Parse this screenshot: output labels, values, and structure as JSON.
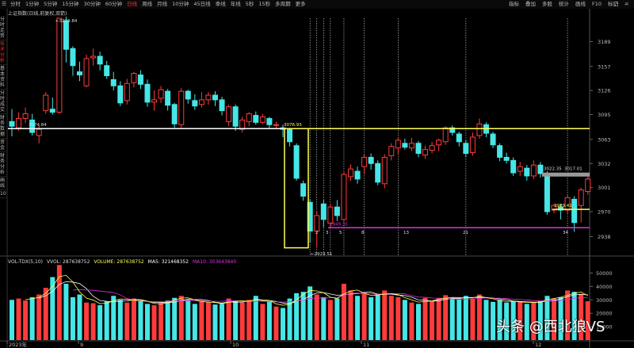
{
  "toolbar": {
    "home": "☰",
    "periods": [
      "分时",
      "1分钟",
      "5分钟",
      "15分钟",
      "30分钟",
      "60分钟",
      "日线",
      "周线",
      "月线",
      "10分钟",
      "45日线",
      "季线",
      "年线",
      "5秒",
      "15秒",
      "多周期",
      "更多"
    ],
    "active_period": "日线",
    "tools": [
      "指标",
      "叠加",
      "多股",
      "统计",
      "画线",
      "F10",
      "标记",
      "-"
    ],
    "window": [
      "□",
      "×"
    ]
  },
  "sidebar": {
    "items": [
      "分时走势",
      "技术分析",
      "基本资料",
      "分时成交",
      "财务数据",
      "资金",
      "财务分析",
      "画线",
      "10"
    ],
    "active": "技术分析"
  },
  "chart_title": "上证指数(日线,前复权,双箭)",
  "price_axis": {
    "ticks": [
      "3189",
      "3157",
      "3126",
      "3095",
      "3063",
      "3032",
      "3001",
      "2970",
      "2938"
    ],
    "min": 2918,
    "max": 3219
  },
  "volume_axis": {
    "ticks": [
      "50000",
      "40000",
      "30000",
      "20000",
      "10000"
    ],
    "max": 55000
  },
  "date_axis": [
    "2023年",
    "9",
    "10",
    "11",
    "12"
  ],
  "annotations": {
    "high_label": "3219.84",
    "left_line_label": "3074.84",
    "box_top_label": "3076.93",
    "low_label": "2923.51",
    "magenta_label": "2949.35",
    "gray_label": "3022.35",
    "gray_label2": "3017.01",
    "yellow_right_label": "2989.41",
    "counts": [
      "2",
      "3",
      "5",
      "8",
      "13",
      "21",
      "34"
    ]
  },
  "volume_legend": {
    "name": "VOL-TDX(5,10)",
    "vvol": "VVOL: 287638752",
    "volume": "VOLUME: 287638752",
    "ma5": "MA5: 321468352",
    "ma10": "MA10: 303643840"
  },
  "colors": {
    "up": "#ff3b3b",
    "down": "#45e6e6",
    "white": "#ffffff",
    "yellow": "#ffff55",
    "magenta": "#e030e0",
    "gray": "#9a9a9a"
  },
  "watermark": "头条 @西北狼VS",
  "chart_data": {
    "type": "candlestick",
    "series": [
      {
        "name": "OHLC",
        "values": [
          [
            3086,
            3080,
            3102,
            3067
          ],
          [
            3078,
            3090,
            3098,
            3074
          ],
          [
            3090,
            3096,
            3104,
            3084
          ],
          [
            3088,
            3072,
            3096,
            3068
          ],
          [
            3068,
            3076,
            3081,
            3058
          ],
          [
            3100,
            3120,
            3124,
            3096
          ],
          [
            3102,
            3098,
            3117,
            3095
          ],
          [
            3098,
            3219,
            3219,
            3096
          ],
          [
            3216,
            3179,
            3221,
            3162
          ],
          [
            3180,
            3158,
            3183,
            3145
          ],
          [
            3150,
            3146,
            3163,
            3138
          ],
          [
            3132,
            3167,
            3172,
            3130
          ],
          [
            3168,
            3170,
            3180,
            3158
          ],
          [
            3170,
            3160,
            3176,
            3152
          ],
          [
            3158,
            3145,
            3164,
            3141
          ],
          [
            3140,
            3132,
            3150,
            3126
          ],
          [
            3132,
            3110,
            3138,
            3106
          ],
          [
            3113,
            3135,
            3141,
            3108
          ],
          [
            3136,
            3148,
            3150,
            3130
          ],
          [
            3146,
            3134,
            3152,
            3128
          ],
          [
            3134,
            3111,
            3140,
            3105
          ],
          [
            3111,
            3114,
            3126,
            3100
          ],
          [
            3116,
            3127,
            3132,
            3110
          ],
          [
            3125,
            3107,
            3128,
            3100
          ],
          [
            3108,
            3083,
            3110,
            3078
          ],
          [
            3082,
            3125,
            3129,
            3078
          ],
          [
            3125,
            3115,
            3127,
            3109
          ],
          [
            3113,
            3106,
            3121,
            3101
          ],
          [
            3108,
            3114,
            3124,
            3104
          ],
          [
            3114,
            3120,
            3124,
            3108
          ],
          [
            3120,
            3114,
            3125,
            3106
          ],
          [
            3114,
            3100,
            3118,
            3094
          ],
          [
            3086,
            3105,
            3108,
            3080
          ],
          [
            3105,
            3080,
            3108,
            3074
          ],
          [
            3076,
            3088,
            3092,
            3072
          ],
          [
            3086,
            3096,
            3098,
            3080
          ],
          [
            3094,
            3085,
            3099,
            3082
          ],
          [
            3085,
            3092,
            3096,
            3083
          ],
          [
            3090,
            3082,
            3092,
            3077
          ],
          [
            3082,
            3082,
            3086,
            3076
          ],
          [
            3078,
            3076,
            3082,
            3066
          ],
          [
            3076,
            3060,
            3078,
            3054
          ],
          [
            3055,
            3013,
            3058,
            3010
          ],
          [
            3006,
            2990,
            3010,
            2984
          ],
          [
            2982,
            2945,
            2986,
            2930
          ],
          [
            2945,
            2965,
            2971,
            2924
          ],
          [
            2980,
            2960,
            2985,
            2950
          ],
          [
            2955,
            2976,
            2980,
            2950
          ],
          [
            2976,
            2965,
            2985,
            2958
          ],
          [
            2960,
            3018,
            3021,
            2957
          ],
          [
            3015,
            3025,
            3031,
            3010
          ],
          [
            3022,
            3012,
            3028,
            3006
          ],
          [
            3028,
            3040,
            3043,
            3018
          ],
          [
            3040,
            3032,
            3045,
            3024
          ],
          [
            3032,
            3008,
            3036,
            3004
          ],
          [
            3006,
            3040,
            3044,
            3000
          ],
          [
            3042,
            3054,
            3058,
            3036
          ],
          [
            3052,
            3062,
            3066,
            3044
          ],
          [
            3058,
            3053,
            3064,
            3050
          ],
          [
            3052,
            3058,
            3065,
            3048
          ],
          [
            3058,
            3045,
            3061,
            3040
          ],
          [
            3043,
            3050,
            3055,
            3038
          ],
          [
            3049,
            3055,
            3060,
            3045
          ],
          [
            3056,
            3062,
            3064,
            3048
          ],
          [
            3060,
            3078,
            3080,
            3056
          ],
          [
            3078,
            3072,
            3081,
            3068
          ],
          [
            3070,
            3060,
            3073,
            3054
          ],
          [
            3058,
            3045,
            3062,
            3040
          ],
          [
            3046,
            3066,
            3072,
            3042
          ],
          [
            3068,
            3083,
            3090,
            3064
          ],
          [
            3082,
            3071,
            3085,
            3066
          ],
          [
            3070,
            3056,
            3073,
            3052
          ],
          [
            3055,
            3040,
            3058,
            3035
          ],
          [
            3040,
            3036,
            3046,
            3032
          ],
          [
            3036,
            3020,
            3040,
            3016
          ],
          [
            3022,
            3028,
            3034,
            3016
          ],
          [
            3026,
            3016,
            3030,
            3010
          ],
          [
            3016,
            3030,
            3036,
            3012
          ],
          [
            3030,
            3019,
            3034,
            3014
          ],
          [
            3018,
            2970,
            3022,
            2966
          ],
          [
            2972,
            2978,
            2980,
            2968
          ],
          [
            2976,
            2972,
            2980,
            2960
          ],
          [
            2972,
            2988,
            2992,
            2968
          ],
          [
            2986,
            2956,
            2990,
            2944
          ],
          [
            2978,
            2998,
            3001,
            2956
          ],
          [
            2996,
            3012,
            3015,
            2992
          ]
        ]
      },
      {
        "name": "Volume",
        "values": [
          30000,
          31000,
          29500,
          32000,
          34000,
          39000,
          47000,
          56000,
          42000,
          32000,
          34000,
          28000,
          27500,
          26000,
          29000,
          33000,
          30000,
          28000,
          31000,
          29000,
          27000,
          26000,
          28000,
          29500,
          31500,
          33000,
          30000,
          27000,
          29500,
          28000,
          26500,
          27000,
          31000,
          29000,
          28000,
          30000,
          33000,
          27000,
          29000,
          25000,
          24000,
          31000,
          35000,
          36000,
          40000,
          34000,
          32000,
          30000,
          31000,
          42000,
          37000,
          33000,
          35000,
          32000,
          34000,
          37000,
          33000,
          32000,
          30000,
          28000,
          27000,
          31500,
          29000,
          31000,
          33500,
          31000,
          30500,
          33000,
          31000,
          34000,
          30000,
          28500,
          30000,
          28000,
          29000,
          28500,
          27000,
          28500,
          29000,
          33000,
          31000,
          32000,
          37000,
          36000,
          34500,
          29000
        ]
      }
    ],
    "ylim": [
      2918,
      3219
    ]
  }
}
